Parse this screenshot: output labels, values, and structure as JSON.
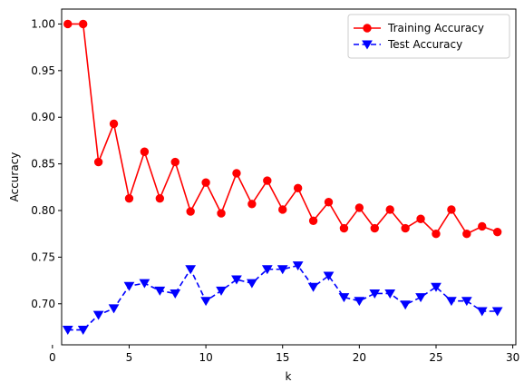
{
  "chart_data": {
    "type": "line",
    "title": "",
    "xlabel": "k",
    "ylabel": "Accuracy",
    "xlim": [
      0.6,
      30.2
    ],
    "ylim": [
      0.656,
      1.016
    ],
    "x_ticks": [
      0,
      5,
      10,
      15,
      20,
      25,
      30
    ],
    "x_tick_labels": [
      "0",
      "5",
      "10",
      "15",
      "20",
      "25",
      "30"
    ],
    "y_ticks": [
      0.7,
      0.75,
      0.8,
      0.85,
      0.9,
      0.95,
      1.0
    ],
    "y_tick_labels": [
      "0.70",
      "0.75",
      "0.80",
      "0.85",
      "0.90",
      "0.95",
      "1.00"
    ],
    "grid": false,
    "legend_position": "top-right",
    "x": [
      1,
      2,
      3,
      4,
      5,
      6,
      7,
      8,
      9,
      10,
      11,
      12,
      13,
      14,
      15,
      16,
      17,
      18,
      19,
      20,
      21,
      22,
      23,
      24,
      25,
      26,
      27,
      28,
      29
    ],
    "series": [
      {
        "name": "Training Accuracy",
        "color": "#ff0000",
        "line_style": "solid",
        "marker": "circle",
        "values": [
          1.0,
          1.0,
          0.852,
          0.893,
          0.813,
          0.863,
          0.813,
          0.852,
          0.799,
          0.83,
          0.797,
          0.84,
          0.807,
          0.832,
          0.801,
          0.824,
          0.789,
          0.809,
          0.781,
          0.803,
          0.781,
          0.801,
          0.781,
          0.791,
          0.775,
          0.801,
          0.775,
          0.783,
          0.777
        ]
      },
      {
        "name": "Test Accuracy",
        "color": "#0000ff",
        "line_style": "dashed",
        "marker": "triangle-down",
        "values": [
          0.672,
          0.672,
          0.688,
          0.695,
          0.719,
          0.722,
          0.714,
          0.711,
          0.737,
          0.703,
          0.714,
          0.726,
          0.722,
          0.737,
          0.737,
          0.741,
          0.718,
          0.73,
          0.707,
          0.703,
          0.711,
          0.711,
          0.699,
          0.707,
          0.718,
          0.703,
          0.703,
          0.692,
          0.692
        ]
      }
    ]
  }
}
